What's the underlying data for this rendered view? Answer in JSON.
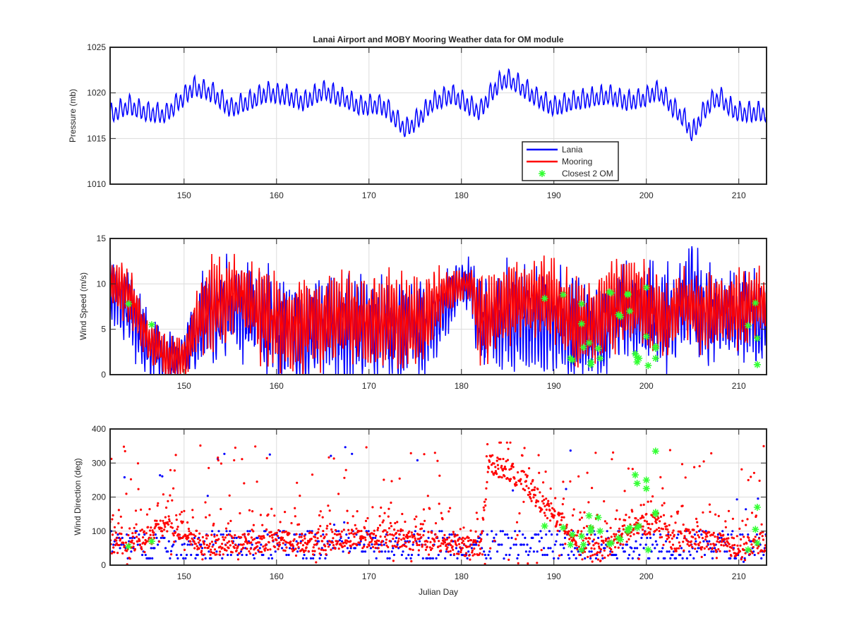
{
  "chart_data": [
    {
      "type": "line",
      "title": "Lanai Airport and MOBY Mooring Weather data for OM module",
      "xlabel": "",
      "ylabel": "Pressure (mb)",
      "xlim": [
        142,
        213
      ],
      "ylim": [
        1010,
        1025
      ],
      "xticks": [
        150,
        160,
        170,
        180,
        190,
        200,
        210
      ],
      "yticks": [
        1010,
        1015,
        1020,
        1025
      ],
      "grid": true,
      "legend": {
        "placement": "lower-center",
        "entries": [
          {
            "name": "Lania",
            "style": "line",
            "color": "#0000ff"
          },
          {
            "name": "Mooring",
            "style": "line",
            "color": "#ff0000"
          },
          {
            "name": "Closest 2 OM",
            "style": "star",
            "color": "#33ff33"
          }
        ]
      },
      "series": [
        {
          "name": "Lania",
          "color": "#0000ff",
          "baseline": [
            [
              142,
              1017.5
            ],
            [
              144,
              1018.6
            ],
            [
              146,
              1017.8
            ],
            [
              148,
              1017.6
            ],
            [
              150,
              1019.6
            ],
            [
              151,
              1020.6
            ],
            [
              153,
              1020.0
            ],
            [
              155,
              1018.3
            ],
            [
              157,
              1019.0
            ],
            [
              159,
              1020.0
            ],
            [
              161,
              1019.7
            ],
            [
              163,
              1019.0
            ],
            [
              165,
              1020.2
            ],
            [
              167,
              1019.5
            ],
            [
              169,
              1018.5
            ],
            [
              171,
              1018.7
            ],
            [
              172,
              1018.2
            ],
            [
              173,
              1017.0
            ],
            [
              174,
              1016.0
            ],
            [
              175,
              1016.8
            ],
            [
              177,
              1019.0
            ],
            [
              179,
              1019.8
            ],
            [
              181,
              1018.5
            ],
            [
              182,
              1018.0
            ],
            [
              183,
              1019.6
            ],
            [
              184,
              1021.0
            ],
            [
              185,
              1021.5
            ],
            [
              186,
              1021.0
            ],
            [
              188,
              1019.5
            ],
            [
              190,
              1018.4
            ],
            [
              192,
              1019.0
            ],
            [
              194,
              1019.4
            ],
            [
              196,
              1019.7
            ],
            [
              198,
              1019.0
            ],
            [
              200,
              1019.5
            ],
            [
              201,
              1020.2
            ],
            [
              202,
              1019.5
            ],
            [
              203,
              1018.2
            ],
            [
              204,
              1017.3
            ],
            [
              205,
              1015.5
            ],
            [
              206,
              1017.6
            ],
            [
              207,
              1019.0
            ],
            [
              208,
              1019.5
            ],
            [
              209,
              1018.4
            ],
            [
              210,
              1017.8
            ],
            [
              212,
              1017.8
            ],
            [
              213,
              1017.8
            ]
          ]
        }
      ]
    },
    {
      "type": "line",
      "xlabel": "",
      "ylabel": "Wind Speed (m/s)",
      "xlim": [
        142,
        213
      ],
      "ylim": [
        0,
        15
      ],
      "xticks": [
        150,
        160,
        170,
        180,
        190,
        200,
        210
      ],
      "yticks": [
        0,
        5,
        10,
        15
      ],
      "grid": true,
      "series": [
        {
          "name": "Lania",
          "color": "#0000ff",
          "envelope": [
            [
              142,
              9,
              3.5
            ],
            [
              144,
              8,
              3.5
            ],
            [
              146,
              3,
              3
            ],
            [
              148,
              2,
              2
            ],
            [
              150,
              2,
              2
            ],
            [
              152,
              6,
              4.5
            ],
            [
              154,
              7,
              4.5
            ],
            [
              156,
              7,
              4.5
            ],
            [
              158,
              6,
              4.5
            ],
            [
              160,
              5,
              4.5
            ],
            [
              162,
              4,
              4.5
            ],
            [
              164,
              5,
              4.5
            ],
            [
              166,
              5,
              4.5
            ],
            [
              168,
              5,
              4.5
            ],
            [
              170,
              5,
              4.5
            ],
            [
              172,
              5,
              4.5
            ],
            [
              174,
              5,
              4.5
            ],
            [
              176,
              5,
              4.5
            ],
            [
              178,
              7,
              3
            ],
            [
              180,
              10,
              2
            ],
            [
              181,
              10,
              2.5
            ],
            [
              182,
              5,
              4
            ],
            [
              184,
              6,
              4.5
            ],
            [
              186,
              6,
              4.5
            ],
            [
              188,
              6,
              4.5
            ],
            [
              190,
              6,
              4.5
            ],
            [
              192,
              5,
              4.5
            ],
            [
              194,
              4,
              4
            ],
            [
              196,
              6,
              4.5
            ],
            [
              198,
              7,
              4.5
            ],
            [
              200,
              7,
              4.5
            ],
            [
              202,
              6,
              4.5
            ],
            [
              204,
              7,
              4.5
            ],
            [
              205,
              9,
              5
            ],
            [
              206,
              7,
              4.5
            ],
            [
              208,
              6,
              4
            ],
            [
              210,
              7,
              4
            ],
            [
              212,
              6,
              4
            ],
            [
              213,
              6,
              4
            ]
          ]
        },
        {
          "name": "Mooring",
          "color": "#ff0000",
          "envelope": [
            [
              142,
              10,
              2
            ],
            [
              144,
              9,
              2.5
            ],
            [
              146,
              4,
              2
            ],
            [
              148,
              2,
              2
            ],
            [
              150,
              2,
              2
            ],
            [
              152,
              7,
              4
            ],
            [
              154,
              8,
              4
            ],
            [
              156,
              9,
              3
            ],
            [
              158,
              7,
              4
            ],
            [
              160,
              6,
              4
            ],
            [
              162,
              5,
              4
            ],
            [
              164,
              6,
              4
            ],
            [
              166,
              6,
              4
            ],
            [
              168,
              6,
              4
            ],
            [
              170,
              6,
              4
            ],
            [
              172,
              6,
              4
            ],
            [
              174,
              6,
              4
            ],
            [
              176,
              6,
              4
            ],
            [
              178,
              9,
              2
            ],
            [
              180,
              10,
              1.5
            ],
            [
              181,
              10,
              1.5
            ],
            [
              182,
              6,
              4
            ],
            [
              184,
              7,
              4
            ],
            [
              186,
              8,
              3.5
            ],
            [
              188,
              8,
              3.5
            ],
            [
              190,
              8,
              3.5
            ],
            [
              192,
              6,
              4
            ],
            [
              194,
              5,
              4
            ],
            [
              196,
              7,
              4
            ],
            [
              198,
              8,
              3.5
            ],
            [
              200,
              8,
              3.5
            ],
            [
              202,
              6,
              4
            ],
            [
              204,
              8,
              3
            ],
            [
              206,
              7,
              3.5
            ],
            [
              208,
              7,
              3
            ],
            [
              210,
              7,
              3.5
            ],
            [
              212,
              8,
              3
            ],
            [
              213,
              8,
              3
            ]
          ]
        },
        {
          "name": "Closest 2 OM",
          "color": "#33ff33",
          "x": [
            144.0,
            146.5,
            189.0,
            191.0,
            191.8,
            192.0,
            193.0,
            193.0,
            193.2,
            193.8,
            194.0,
            194.0,
            194.8,
            195.0,
            196.0,
            196.2,
            197.0,
            197.2,
            198.0,
            198.0,
            198.2,
            198.8,
            199.0,
            199.0,
            199.2,
            200.0,
            200.0,
            200.2,
            201.0,
            201.0,
            201.0,
            211.0,
            211.8,
            212.0,
            212.0
          ],
          "y": [
            7.8,
            5.5,
            8.4,
            8.8,
            1.8,
            1.6,
            7.8,
            5.6,
            3.0,
            3.5,
            1.4,
            1.1,
            2.9,
            1.8,
            9.1,
            9.0,
            6.6,
            6.4,
            8.9,
            8.8,
            7.0,
            2.3,
            1.9,
            1.4,
            1.8,
            9.6,
            4.2,
            1.0,
            3.1,
            2.9,
            1.8,
            5.4,
            7.9,
            4.0,
            1.1
          ]
        }
      ]
    },
    {
      "type": "scatter",
      "xlabel": "Julian Day",
      "ylabel": "Wind Direction (deg)",
      "xlim": [
        142,
        213
      ],
      "ylim": [
        0,
        400
      ],
      "xticks": [
        150,
        160,
        170,
        180,
        190,
        200,
        210
      ],
      "yticks": [
        0,
        100,
        200,
        300,
        400
      ],
      "grid": true,
      "series": [
        {
          "name": "Lania",
          "color": "#0000ff",
          "levels": [
            20,
            30,
            40,
            50,
            60,
            70,
            80,
            90,
            100
          ],
          "outlier_rate": 0.05
        },
        {
          "name": "Mooring",
          "color": "#ff0000",
          "center": [
            [
              142,
              70
            ],
            [
              144,
              60
            ],
            [
              146,
              80
            ],
            [
              148,
              120
            ],
            [
              150,
              100
            ],
            [
              152,
              60
            ],
            [
              156,
              60
            ],
            [
              160,
              70
            ],
            [
              164,
              70
            ],
            [
              168,
              80
            ],
            [
              172,
              80
            ],
            [
              176,
              70
            ],
            [
              180,
              60
            ],
            [
              182,
              40
            ],
            [
              183,
              300
            ],
            [
              185,
              280
            ],
            [
              187,
              240
            ],
            [
              189,
              170
            ],
            [
              191,
              120
            ],
            [
              193,
              60
            ],
            [
              195,
              40
            ],
            [
              197,
              80
            ],
            [
              199,
              110
            ],
            [
              201,
              130
            ],
            [
              203,
              70
            ],
            [
              205,
              80
            ],
            [
              207,
              70
            ],
            [
              210,
              50
            ],
            [
              213,
              70
            ]
          ],
          "spread": 60
        },
        {
          "name": "Closest 2 OM",
          "color": "#33ff33",
          "x": [
            144.0,
            146.5,
            189.0,
            191.0,
            191.8,
            192.0,
            193.0,
            193.0,
            193.2,
            193.8,
            194.0,
            194.0,
            194.8,
            195.0,
            196.0,
            196.2,
            197.0,
            197.2,
            198.0,
            198.0,
            198.2,
            198.8,
            199.0,
            199.0,
            199.2,
            200.0,
            200.0,
            200.2,
            201.0,
            201.0,
            201.0,
            211.0,
            211.8,
            212.0,
            212.0
          ],
          "y": [
            55,
            70,
            115,
            110,
            60,
            90,
            85,
            45,
            60,
            145,
            110,
            100,
            140,
            100,
            62,
            65,
            80,
            75,
            105,
            100,
            110,
            265,
            240,
            110,
            115,
            250,
            225,
            45,
            335,
            150,
            155,
            45,
            105,
            65,
            170
          ]
        }
      ]
    }
  ]
}
